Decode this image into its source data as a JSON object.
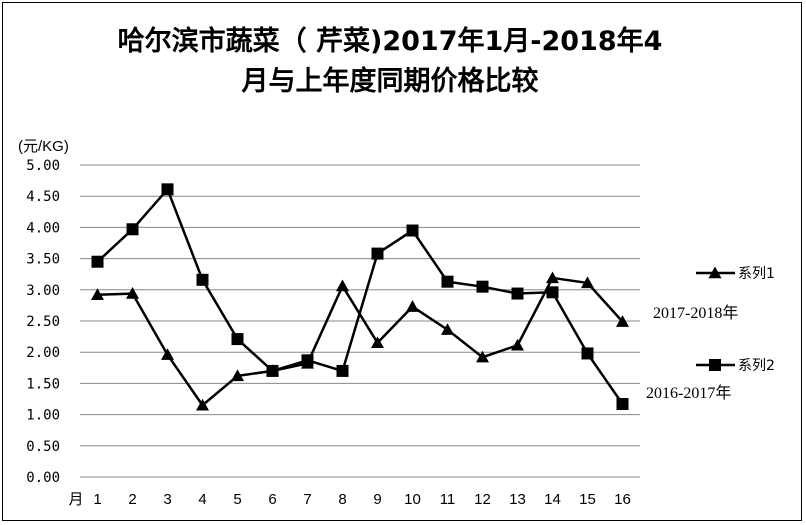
{
  "chart_data": {
    "type": "line",
    "title_line1": "哈尔滨市蔬菜（ 芹菜)2017年1月-2018年4",
    "title_line2": "月与上年度同期价格比较",
    "unit_label": "(元/KG)",
    "x_first_prefix": "月",
    "categories": [
      "1",
      "2",
      "3",
      "4",
      "5",
      "6",
      "7",
      "8",
      "9",
      "10",
      "11",
      "12",
      "13",
      "14",
      "15",
      "16"
    ],
    "ylim": [
      0,
      5
    ],
    "ytick_labels": [
      "0.00",
      "0.50",
      "1.00",
      "1.50",
      "2.00",
      "2.50",
      "3.00",
      "3.50",
      "4.00",
      "4.50",
      "5.00"
    ],
    "grid": true,
    "legend_position": "right",
    "series": [
      {
        "name": "系列1",
        "period_label": "2017-2018年",
        "marker": "triangle",
        "values": [
          2.92,
          2.94,
          1.96,
          1.15,
          1.62,
          1.7,
          1.82,
          3.06,
          2.15,
          2.73,
          2.36,
          1.92,
          2.11,
          3.19,
          3.11,
          2.49
        ]
      },
      {
        "name": "系列2",
        "period_label": "2016-2017年",
        "marker": "square",
        "values": [
          3.45,
          3.97,
          4.61,
          3.16,
          2.21,
          1.7,
          1.87,
          1.7,
          3.58,
          3.95,
          3.13,
          3.05,
          2.94,
          2.96,
          1.98,
          1.17
        ]
      }
    ]
  },
  "colors": {
    "line": "#000000",
    "grid": "#888888"
  }
}
